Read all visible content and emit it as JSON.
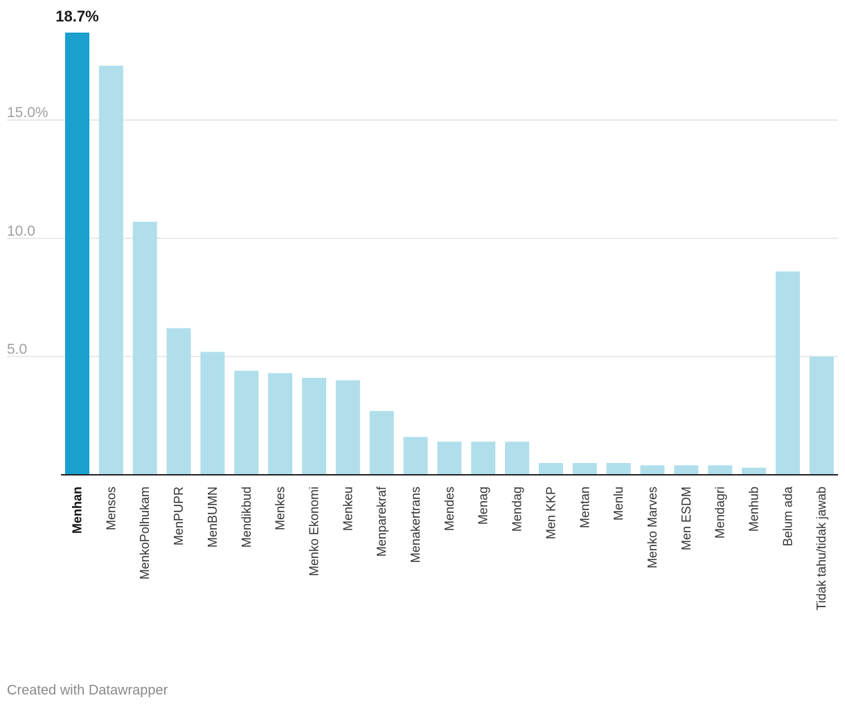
{
  "chart_data": {
    "type": "bar",
    "categories": [
      "Menhan",
      "Mensos",
      "MenkoPolhukam",
      "MenPUPR",
      "MenBUMN",
      "Mendikbud",
      "Menkes",
      "Menko Ekonomi",
      "Menkeu",
      "Menparekraf",
      "Menakertrans",
      "Mendes",
      "Menag",
      "Mendag",
      "Men KKP",
      "Mentan",
      "Menlu",
      "Menko Marves",
      "Men ESDM",
      "Mendagri",
      "Menhub",
      "Belum ada",
      "Tidak tahu/tidak jawab"
    ],
    "values": [
      18.7,
      17.3,
      10.7,
      6.2,
      5.2,
      4.4,
      4.3,
      4.1,
      4.0,
      2.7,
      1.6,
      1.4,
      1.4,
      1.4,
      0.5,
      0.5,
      0.5,
      0.4,
      0.4,
      0.4,
      0.3,
      8.6,
      5.0
    ],
    "highlight_index": 0,
    "highlight_label": "18.7%",
    "yticks": [
      {
        "value": 5,
        "label": "5.0"
      },
      {
        "value": 10,
        "label": "10.0"
      },
      {
        "value": 15,
        "label": "15.0%"
      }
    ],
    "ylim": [
      0,
      18.7
    ],
    "grid": true,
    "colors": {
      "highlight": "#1aa0cf",
      "bar": "#b0dfeb",
      "grid": "#e2e2e2",
      "axis": "#222222",
      "tick_label": "#a0a0a0",
      "category_label": "#333333"
    }
  },
  "footer": {
    "credit": "Created with Datawrapper"
  }
}
